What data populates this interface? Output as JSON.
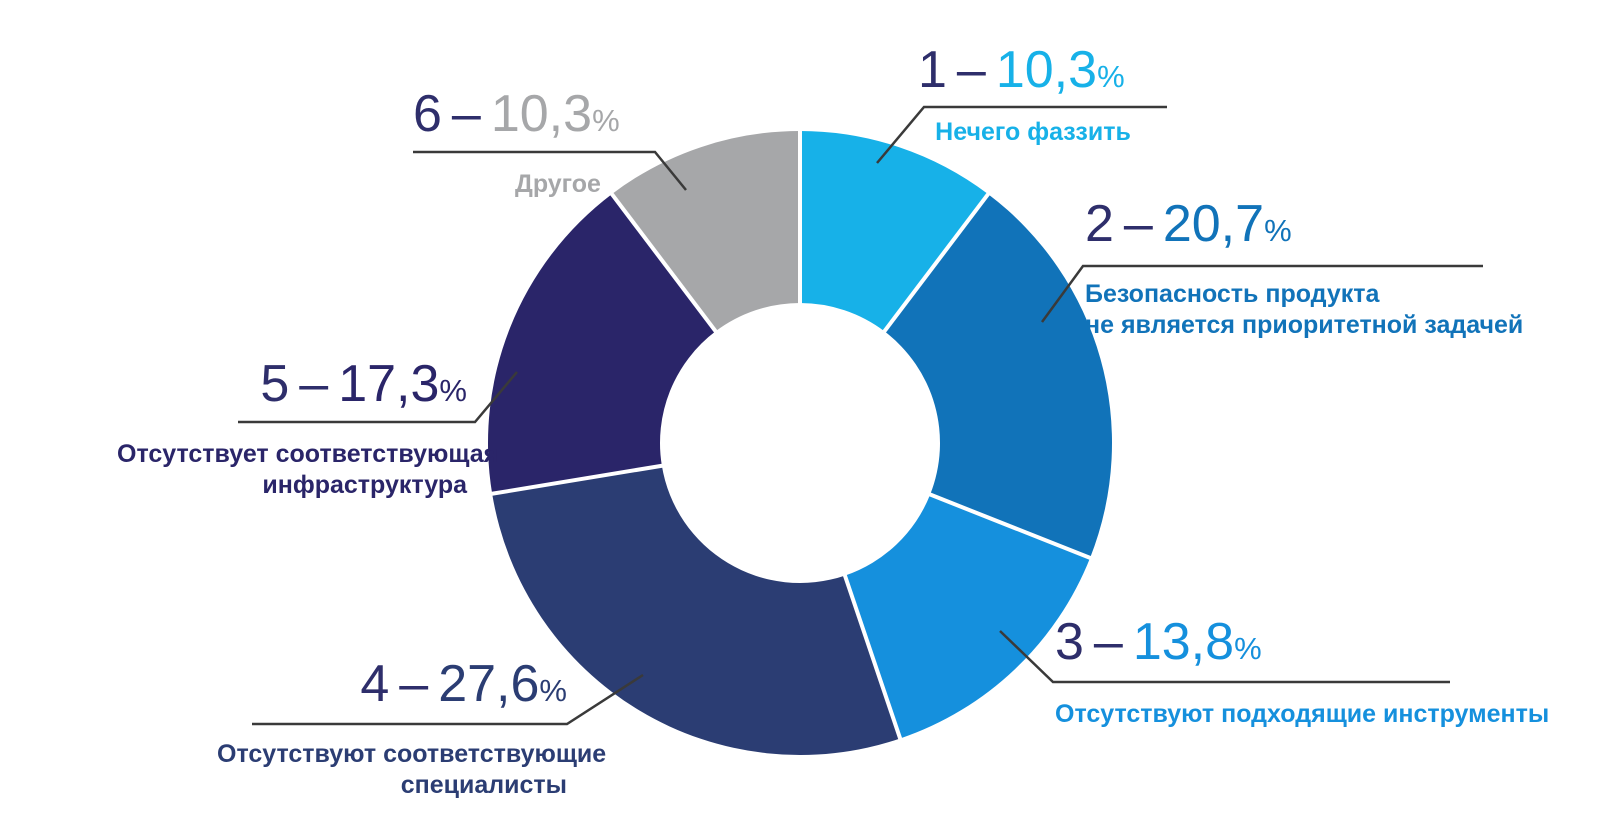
{
  "chart_data": {
    "type": "pie",
    "variant": "donut",
    "direction": "clockwise",
    "start_angle_deg": 0,
    "total": 100,
    "title": "",
    "dash": "–",
    "index_color": "#2e2e6b",
    "separator_color": "#ffffff",
    "leader_line_color": "#3a3a3a",
    "background": "#ffffff",
    "segments": [
      {
        "id": "1",
        "value": 10.3,
        "value_text": "10,3",
        "unit": "%",
        "color": "#17b1e8",
        "caption_lines": [
          "Нечего фаззить"
        ]
      },
      {
        "id": "2",
        "value": 20.7,
        "value_text": "20,7",
        "unit": "%",
        "color": "#1173b9",
        "caption_lines": [
          "Безопасность продукта",
          "не является приоритетной задачей"
        ]
      },
      {
        "id": "3",
        "value": 13.8,
        "value_text": "13,8",
        "unit": "%",
        "color": "#1590dd",
        "caption_lines": [
          "Отсутствуют подходящие инструменты"
        ]
      },
      {
        "id": "4",
        "value": 27.6,
        "value_text": "27,6",
        "unit": "%",
        "color": "#2b3d73",
        "caption_lines": [
          "Отсутствуют соответствующие",
          "специалисты"
        ]
      },
      {
        "id": "5",
        "value": 17.3,
        "value_text": "17,3",
        "unit": "%",
        "color": "#2a2569",
        "caption_lines": [
          "Отсутствует соответствующая",
          "инфраструктура"
        ]
      },
      {
        "id": "6",
        "value": 10.3,
        "value_text": "10,3",
        "unit": "%",
        "color": "#a6a7a9",
        "caption_lines": [
          "Другое"
        ]
      }
    ]
  }
}
